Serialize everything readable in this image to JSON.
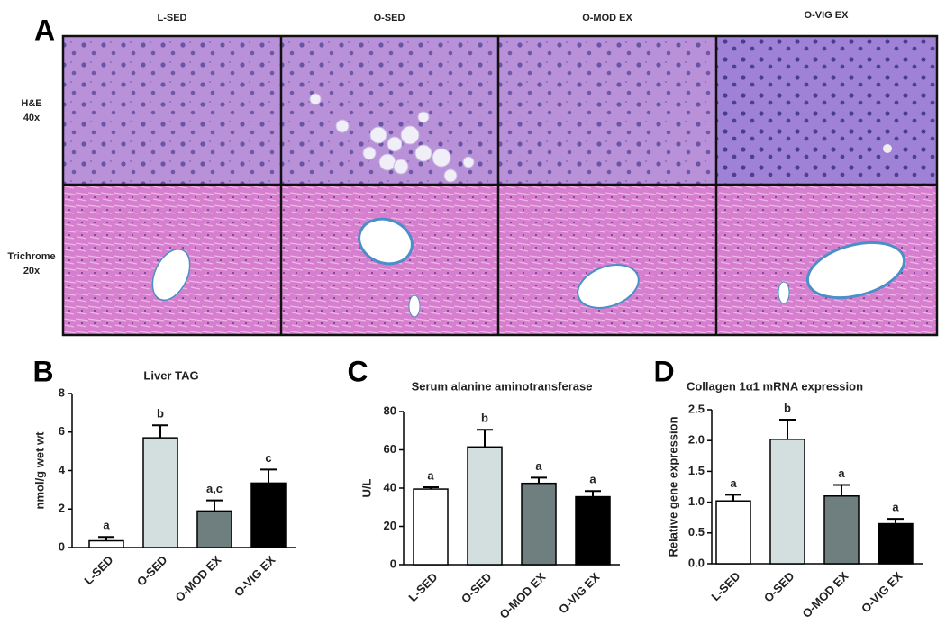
{
  "panel_a": {
    "panel_label": "A",
    "columns": [
      "L-SED",
      "O-SED",
      "O-MOD EX",
      "O-VIG EX"
    ],
    "rows": [
      {
        "label": "H&E",
        "sublabel": "40x"
      },
      {
        "label": "Trichrome",
        "sublabel": "20x"
      }
    ]
  },
  "chart_data": [
    {
      "type": "bar",
      "panel_label": "B",
      "title": "Liver TAG",
      "y_label": "nmol/g wet wt",
      "categories": [
        "L-SED",
        "O-SED",
        "O-MOD EX",
        "O-VIG EX"
      ],
      "values": [
        0.35,
        5.7,
        1.9,
        3.35
      ],
      "errors": [
        0.2,
        0.65,
        0.55,
        0.7
      ],
      "annotations": [
        "a",
        "b",
        "a,c",
        "c"
      ],
      "colors": [
        "#ffffff",
        "#d3dede",
        "#6f7f80",
        "#000000"
      ],
      "ylim": [
        0,
        8
      ],
      "yticks": [
        0,
        2,
        4,
        6,
        8
      ]
    },
    {
      "type": "bar",
      "panel_label": "C",
      "title": "Serum alanine aminotransferase",
      "y_label": "U/L",
      "categories": [
        "L-SED",
        "O-SED",
        "O-MOD EX",
        "O-VIG EX"
      ],
      "values": [
        39.5,
        61.5,
        42.5,
        35.5
      ],
      "errors": [
        1,
        9,
        3,
        3
      ],
      "annotations": [
        "a",
        "b",
        "a",
        "a"
      ],
      "colors": [
        "#ffffff",
        "#d3dede",
        "#6f7f80",
        "#000000"
      ],
      "ylim": [
        0,
        80
      ],
      "yticks": [
        0,
        20,
        40,
        60,
        80
      ]
    },
    {
      "type": "bar",
      "panel_label": "D",
      "title": "Collagen 1α1 mRNA expression",
      "y_label": "Relative gene expression",
      "categories": [
        "L-SED",
        "O-SED",
        "O-MOD EX",
        "O-VIG EX"
      ],
      "values": [
        1.02,
        2.02,
        1.1,
        0.65
      ],
      "errors": [
        0.1,
        0.32,
        0.18,
        0.08
      ],
      "annotations": [
        "a",
        "b",
        "a",
        "a"
      ],
      "colors": [
        "#ffffff",
        "#d3dede",
        "#6f7f80",
        "#000000"
      ],
      "ylim": [
        0,
        2.5
      ],
      "yticks": [
        {
          "value": 0,
          "label": "0.0"
        },
        0.5,
        {
          "value": 1,
          "label": "1.0"
        },
        1.5,
        {
          "value": 2,
          "label": "2.0"
        },
        2.5
      ]
    }
  ]
}
